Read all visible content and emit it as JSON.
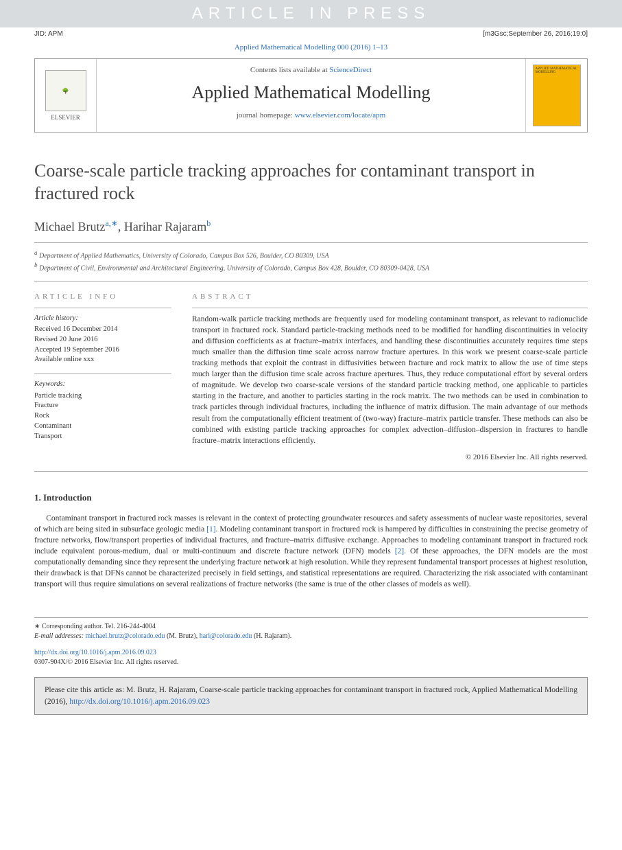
{
  "watermark": "ARTICLE IN PRESS",
  "jid": "JID: APM",
  "typeset_info": "[m3Gsc;September 26, 2016;19:0]",
  "citation_line": "Applied Mathematical Modelling 000 (2016) 1–13",
  "header": {
    "contents_prefix": "Contents lists available at ",
    "contents_link": "ScienceDirect",
    "journal": "Applied Mathematical Modelling",
    "homepage_prefix": "journal homepage: ",
    "homepage_link": "www.elsevier.com/locate/apm",
    "publisher": "ELSEVIER"
  },
  "title": "Coarse-scale particle tracking approaches for contaminant transport in fractured rock",
  "authors": {
    "a1_name": "Michael Brutz",
    "a1_sup": "a,∗",
    "sep": ", ",
    "a2_name": "Harihar Rajaram",
    "a2_sup": "b"
  },
  "affiliations": {
    "a": "Department of Applied Mathematics, University of Colorado, Campus Box 526, Boulder, CO 80309, USA",
    "b": "Department of Civil, Environmental and Architectural Engineering, University of Colorado, Campus Box 428, Boulder, CO 80309-0428, USA"
  },
  "info": {
    "header": "ARTICLE INFO",
    "history_label": "Article history:",
    "received": "Received 16 December 2014",
    "revised": "Revised 20 June 2016",
    "accepted": "Accepted 19 September 2016",
    "online": "Available online xxx",
    "keywords_label": "Keywords:",
    "kw1": "Particle tracking",
    "kw2": "Fracture",
    "kw3": "Rock",
    "kw4": "Contaminant",
    "kw5": "Transport"
  },
  "abstract": {
    "header": "ABSTRACT",
    "text": "Random-walk particle tracking methods are frequently used for modeling contaminant transport, as relevant to radionuclide transport in fractured rock. Standard particle-tracking methods need to be modified for handling discontinuities in velocity and diffusion coefficients as at fracture–matrix interfaces, and handling these discontinuities accurately requires time steps much smaller than the diffusion time scale across narrow fracture apertures. In this work we present coarse-scale particle tracking methods that exploit the contrast in diffusivities between fracture and rock matrix to allow the use of time steps much larger than the diffusion time scale across fracture apertures. Thus, they reduce computational effort by several orders of magnitude. We develop two coarse-scale versions of the standard particle tracking method, one applicable to particles starting in the fracture, and another to particles starting in the rock matrix. The two methods can be used in combination to track particles through individual fractures, including the influence of matrix diffusion. The main advantage of our methods result from the computationally efficient treatment of (two-way) fracture–matrix particle transfer. These methods can also be combined with existing particle tracking approaches for complex advection–diffusion–dispersion in fractures to handle fracture–matrix interactions efficiently.",
    "copyright": "© 2016 Elsevier Inc. All rights reserved."
  },
  "intro": {
    "heading": "1. Introduction",
    "p1a": "Contaminant transport in fractured rock masses is relevant in the context of protecting groundwater resources and safety assessments of nuclear waste repositories, several of which are being sited in subsurface geologic media ",
    "r1": "[1]",
    "p1b": ". Modeling contaminant transport in fractured rock is hampered by difficulties in constraining the precise geometry of fracture networks, flow/transport properties of individual fractures, and fracture–matrix diffusive exchange. Approaches to modeling contaminant transport in fractured rock include equivalent porous-medium, dual or multi-continuum and discrete fracture network (DFN) models ",
    "r2": "[2]",
    "p1c": ". Of these approaches, the DFN models are the most computationally demanding since they represent the underlying fracture network at high resolution. While they represent fundamental transport processes at highest resolution, their drawback is that DFNs cannot be characterized precisely in field settings, and statistical representations are required. Characterizing the risk associated with contaminant transport will thus require simulations on several realizations of fracture networks (the same is true of the other classes of models as well)."
  },
  "footer": {
    "corr": "∗ Corresponding author. Tel. 216-244-4004",
    "email_label": "E-mail addresses: ",
    "email1": "michael.brutz@colorado.edu",
    "email1_suffix": " (M. Brutz), ",
    "email2": "hari@colorado.edu",
    "email2_suffix": " (H. Rajaram)."
  },
  "doi": {
    "link": "http://dx.doi.org/10.1016/j.apm.2016.09.023",
    "issn": "0307-904X/© 2016 Elsevier Inc. All rights reserved."
  },
  "citebox": {
    "text": "Please cite this article as: M. Brutz, H. Rajaram, Coarse-scale particle tracking approaches for contaminant transport in fractured rock, Applied Mathematical Modelling (2016), ",
    "link": "http://dx.doi.org/10.1016/j.apm.2016.09.023"
  },
  "colors": {
    "link": "#2a6ebb",
    "watermark_bg": "#d8dcde",
    "cover_bg": "#f4b400",
    "cite_bg": "#e8e8e8"
  }
}
